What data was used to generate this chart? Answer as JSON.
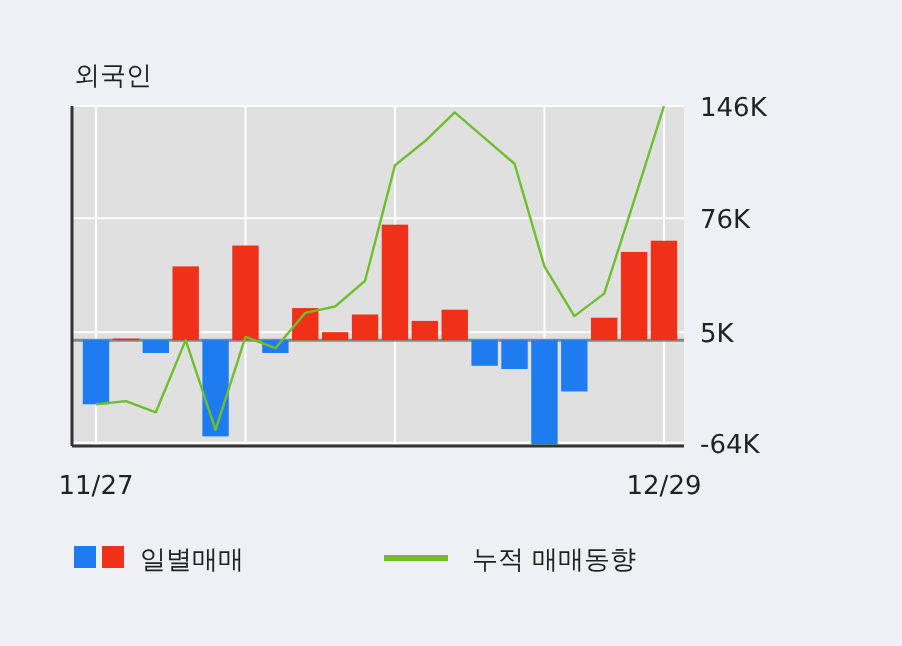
{
  "chart_data": {
    "type": "bar",
    "title": "외국인",
    "categories": [
      "11/27",
      null,
      null,
      null,
      null,
      null,
      null,
      null,
      null,
      null,
      null,
      null,
      null,
      null,
      null,
      null,
      null,
      null,
      null,
      "12/29"
    ],
    "series": [
      {
        "name": "일별매매",
        "colors": [
          "#1f7cf0",
          "#f03018",
          "#1f7cf0",
          "#f03018",
          "#1f7cf0",
          "#f03018",
          "#1f7cf0",
          "#f03018",
          "#f03018",
          "#f03018",
          "#f03018",
          "#f03018",
          "#f03018",
          "#1f7cf0",
          "#1f7cf0",
          "#1f7cf0",
          "#1f7cf0",
          "#f03018",
          "#f03018",
          "#f03018"
        ],
        "values": [
          -40,
          1,
          -8,
          46,
          -60,
          59,
          -8,
          20,
          5,
          16,
          72,
          12,
          19,
          -16,
          -18,
          -65,
          -32,
          14,
          55,
          62
        ]
      },
      {
        "name": "누적 매매동향",
        "type": "line",
        "color": "#6dbf2c",
        "values": [
          -40,
          -38,
          -45,
          0,
          -56,
          2,
          -5,
          17,
          21,
          37,
          109,
          124,
          142,
          126,
          110,
          46,
          15,
          29,
          87,
          146
        ]
      }
    ],
    "ylim": [
      -66,
      146
    ],
    "yticks": [
      {
        "value": 146,
        "label": "146K"
      },
      {
        "value": 76,
        "label": "76K"
      },
      {
        "value": 5,
        "label": "5K"
      },
      {
        "value": -64,
        "label": "-64K"
      }
    ],
    "grid": true,
    "legend": "bottom"
  }
}
